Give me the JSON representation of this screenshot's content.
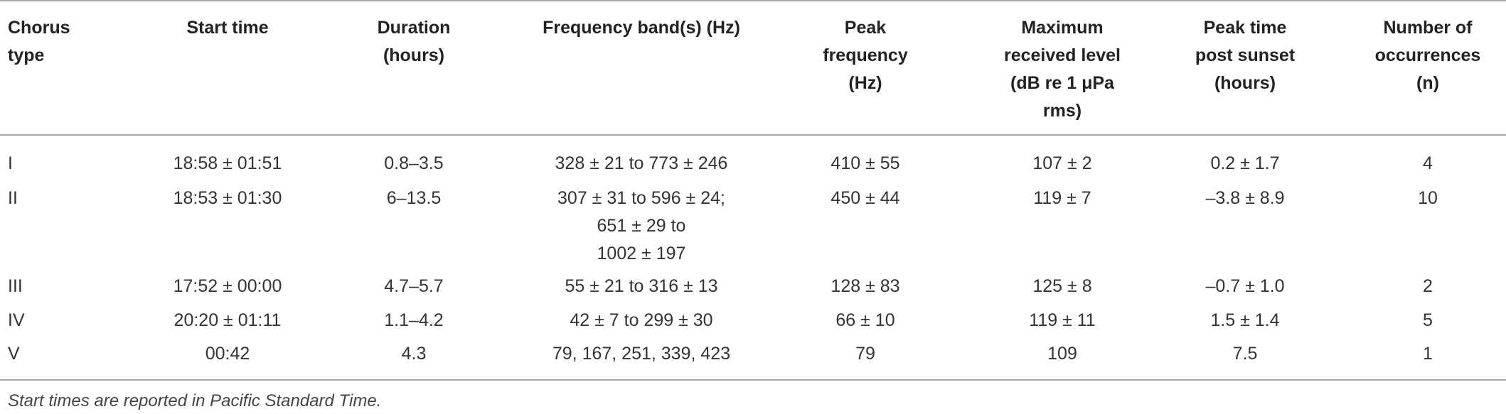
{
  "table": {
    "header": [
      "Chorus type",
      "Start time",
      "Duration (hours)",
      "Frequency band(s) (Hz)",
      "Peak frequency (Hz)",
      "Maximum received level (dB re 1 μPa rms)",
      "Peak time post sunset (hours)",
      "Number of occurrences (n)"
    ],
    "rows": [
      [
        "I",
        "18:58 ± 01:51",
        "0.8–3.5",
        "328 ± 21 to 773 ± 246",
        "410 ± 55",
        "107 ± 2",
        "0.2 ± 1.7",
        "4"
      ],
      [
        "II",
        "18:53 ± 01:30",
        "6–13.5",
        "307 ± 31 to 596 ± 24;\n651 ± 29 to\n1002 ± 197",
        "450 ± 44",
        "119 ± 7",
        "–3.8 ± 8.9",
        "10"
      ],
      [
        "III",
        "17:52 ± 00:00",
        "4.7–5.7",
        "55 ± 21 to 316 ± 13",
        "128 ± 83",
        "125 ± 8",
        "–0.7 ± 1.0",
        "2"
      ],
      [
        "IV",
        "20:20 ± 01:11",
        "1.1–4.2",
        "42 ± 7 to 299 ± 30",
        "66 ± 10",
        "119 ± 11",
        "1.5 ± 1.4",
        "5"
      ],
      [
        "V",
        "00:42",
        "4.3",
        "79, 167, 251, 339, 423",
        "79",
        "109",
        "7.5",
        "1"
      ]
    ]
  },
  "footnote": "Start times are reported in Pacific Standard Time."
}
